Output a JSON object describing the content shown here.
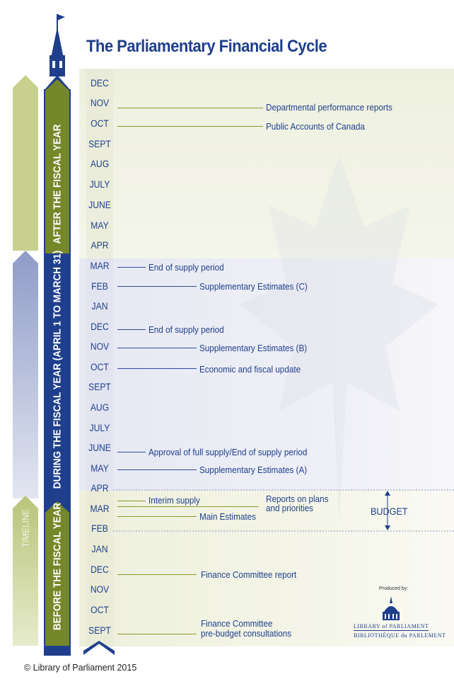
{
  "title": "The Parliamentary Financial Cycle",
  "sections": {
    "after": "AFTER THE FISCAL YEAR",
    "during": "DURING THE FISCAL YEAR (APRIL 1 TO MARCH 31)",
    "before": "BEFORE THE FISCAL YEAR",
    "timeline": "TIMELINE"
  },
  "months": [
    "DEC",
    "NOV",
    "OCT",
    "SEPT",
    "AUG",
    "JULY",
    "JUNE",
    "MAY",
    "APR",
    "MAR",
    "FEB",
    "JAN",
    "DEC",
    "NOV",
    "OCT",
    "SEPT",
    "AUG",
    "JULY",
    "JUNE",
    "MAY",
    "APR",
    "MAR",
    "FEB",
    "JAN",
    "DEC",
    "NOV",
    "OCT",
    "SEPT"
  ],
  "events": {
    "dept_perf": "Departmental performance reports",
    "public_accounts": "Public Accounts of Canada",
    "end_supply_mar": "End of supply period",
    "supp_c": "Supplementary Estimates (C)",
    "end_supply_dec": "End of supply period",
    "supp_b": "Supplementary Estimates (B)",
    "econ_update": "Economic and fiscal update",
    "approval_full": "Approval of full supply/End of supply period",
    "supp_a": "Supplementary Estimates (A)",
    "interim": "Interim supply",
    "reports_plans_1": "Reports on plans",
    "reports_plans_2": "and priorities",
    "main_estimates": "Main Estimates",
    "finance_report": "Finance Committee report",
    "prebudget_1": "Finance Committee",
    "prebudget_2": "pre-budget consultations"
  },
  "budget": "BUDGET",
  "produced_by": "Produced by:",
  "lop_en": "LIBRARY of PARLIAMENT",
  "lop_fr": "BIBLIOTHÈQUE du PARLEMENT",
  "footer": "© Library of Parliament 2015",
  "colors": {
    "navy": "#1f3f8c",
    "olive": "#76872a",
    "pale_olive": "#c8d08e",
    "pale_blue": "#b7bfd9"
  }
}
